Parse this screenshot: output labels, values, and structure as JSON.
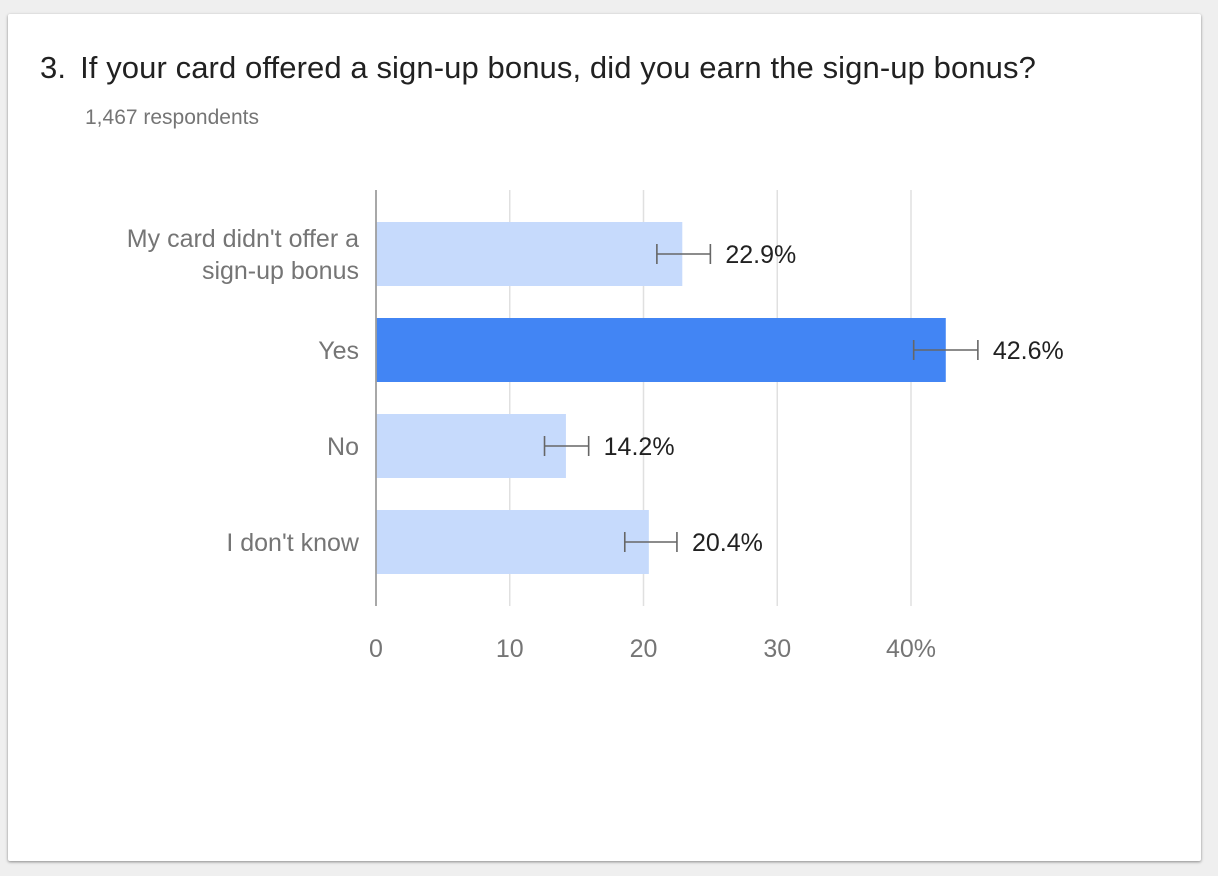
{
  "question": {
    "number": "3.",
    "text": "If your card offered a sign-up bonus, did you earn the sign-up bonus?",
    "respondents": "1,467 respondents"
  },
  "colors": {
    "bar_default": "#c6dafc",
    "bar_highlight": "#4285f4",
    "axis": "#9e9e9e",
    "grid": "#e0e0e0",
    "label": "#757575",
    "value_label": "#212121",
    "error_bar": "#666666"
  },
  "chart_data": {
    "type": "bar",
    "orientation": "horizontal",
    "categories": [
      [
        "My card didn't offer a",
        "sign-up bonus"
      ],
      [
        "Yes"
      ],
      [
        "No"
      ],
      [
        "I don't know"
      ]
    ],
    "values": [
      22.9,
      42.6,
      14.2,
      20.4
    ],
    "value_labels": [
      "22.9%",
      "42.6%",
      "14.2%",
      "20.4%"
    ],
    "error_bars": [
      [
        21.0,
        25.0
      ],
      [
        40.2,
        45.0
      ],
      [
        12.6,
        15.9
      ],
      [
        18.6,
        22.5
      ]
    ],
    "highlight_index": 1,
    "xlim": [
      0,
      40
    ],
    "xticks": [
      0,
      10,
      20,
      30,
      40
    ],
    "xtick_labels": [
      "0",
      "10",
      "20",
      "30",
      "40%"
    ],
    "grid": true,
    "legend": "none"
  }
}
